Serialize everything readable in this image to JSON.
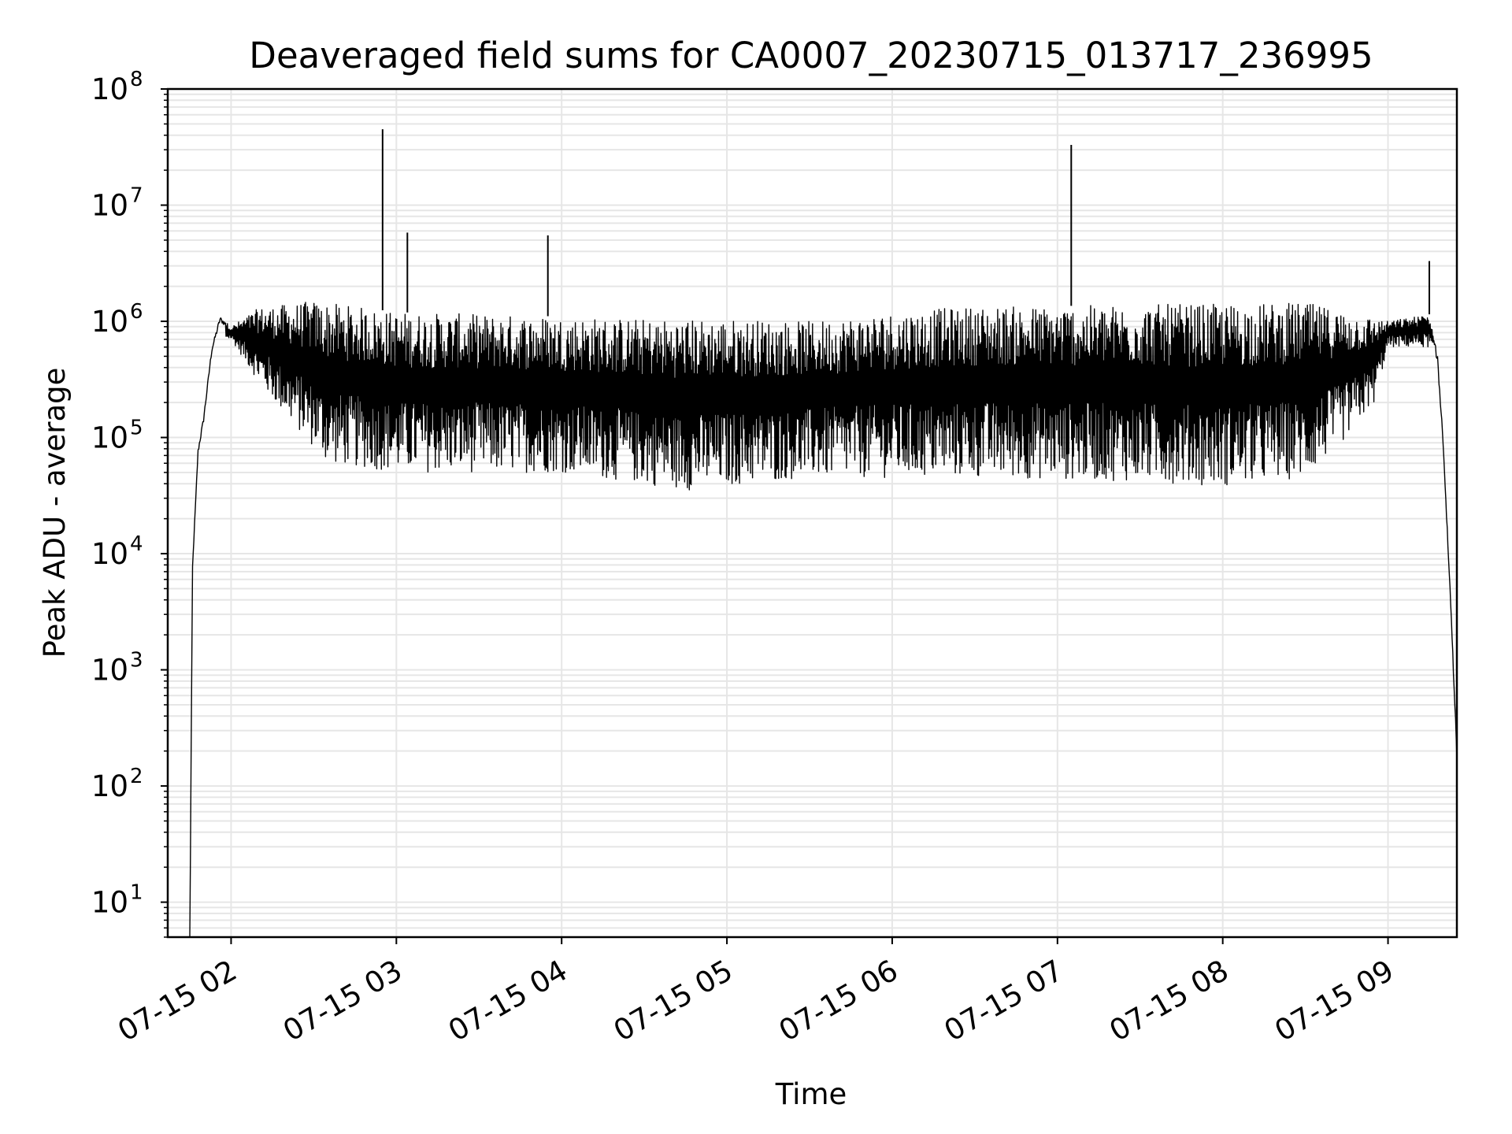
{
  "chart_data": {
    "type": "line",
    "title": "Deaveraged field sums for CA0007_20230715_013717_236995",
    "xlabel": "Time",
    "ylabel": "Peak ADU - average",
    "yscale": "log",
    "ylim": [
      5,
      100000000
    ],
    "xlim": [
      "2023-07-15 01:37",
      "2023-07-15 09:25"
    ],
    "grid": "on (major and minor)",
    "line_color": "#000000",
    "grid_color": "#e6e6e6",
    "x_ticks": [
      {
        "value": "2023-07-15 02:00",
        "label": "07-15 02"
      },
      {
        "value": "2023-07-15 03:00",
        "label": "07-15 03"
      },
      {
        "value": "2023-07-15 04:00",
        "label": "07-15 04"
      },
      {
        "value": "2023-07-15 05:00",
        "label": "07-15 05"
      },
      {
        "value": "2023-07-15 06:00",
        "label": "07-15 06"
      },
      {
        "value": "2023-07-15 07:00",
        "label": "07-15 07"
      },
      {
        "value": "2023-07-15 08:00",
        "label": "07-15 08"
      },
      {
        "value": "2023-07-15 09:00",
        "label": "07-15 09"
      }
    ],
    "y_ticks": [
      {
        "value": 10,
        "base": "10",
        "exp": "1"
      },
      {
        "value": 100,
        "base": "10",
        "exp": "2"
      },
      {
        "value": 1000,
        "base": "10",
        "exp": "3"
      },
      {
        "value": 10000,
        "base": "10",
        "exp": "4"
      },
      {
        "value": 100000,
        "base": "10",
        "exp": "5"
      },
      {
        "value": 1000000,
        "base": "10",
        "exp": "6"
      },
      {
        "value": 10000000,
        "base": "10",
        "exp": "7"
      },
      {
        "value": 100000000,
        "base": "10",
        "exp": "8"
      }
    ],
    "series": [
      {
        "upper_envelope": [
          [
            "2023-07-15 01:45",
            5
          ],
          [
            "2023-07-15 01:46",
            8000
          ],
          [
            "2023-07-15 01:48",
            80000
          ],
          [
            "2023-07-15 01:50",
            150000
          ],
          [
            "2023-07-15 01:53",
            600000
          ],
          [
            "2023-07-15 01:56",
            1100000
          ],
          [
            "2023-07-15 02:00",
            900000
          ],
          [
            "2023-07-15 02:10",
            1300000
          ],
          [
            "2023-07-15 02:30",
            1500000
          ],
          [
            "2023-07-15 03:00",
            1200000
          ],
          [
            "2023-07-15 03:30",
            1150000
          ],
          [
            "2023-07-15 04:00",
            1100000
          ],
          [
            "2023-07-15 04:30",
            1050000
          ],
          [
            "2023-07-15 05:00",
            1050000
          ],
          [
            "2023-07-15 05:30",
            1000000
          ],
          [
            "2023-07-15 06:00",
            1200000
          ],
          [
            "2023-07-15 06:30",
            1350000
          ],
          [
            "2023-07-15 07:00",
            1350000
          ],
          [
            "2023-07-15 07:30",
            1400000
          ],
          [
            "2023-07-15 08:00",
            1400000
          ],
          [
            "2023-07-15 08:30",
            1450000
          ],
          [
            "2023-07-15 09:00",
            1000000
          ],
          [
            "2023-07-15 09:15",
            1150000
          ],
          [
            "2023-07-15 09:18",
            500000
          ],
          [
            "2023-07-15 09:20",
            100000
          ],
          [
            "2023-07-15 09:23",
            3000
          ],
          [
            "2023-07-15 09:25",
            200
          ]
        ],
        "lower_envelope": [
          [
            "2023-07-15 02:00",
            700000
          ],
          [
            "2023-07-15 02:10",
            300000
          ],
          [
            "2023-07-15 02:20",
            150000
          ],
          [
            "2023-07-15 02:35",
            60000
          ],
          [
            "2023-07-15 03:00",
            50000
          ],
          [
            "2023-07-15 04:00",
            50000
          ],
          [
            "2023-07-15 04:45",
            35000
          ],
          [
            "2023-07-15 05:30",
            45000
          ],
          [
            "2023-07-15 06:30",
            45000
          ],
          [
            "2023-07-15 07:30",
            42000
          ],
          [
            "2023-07-15 08:00",
            38000
          ],
          [
            "2023-07-15 08:30",
            45000
          ],
          [
            "2023-07-15 08:45",
            100000
          ],
          [
            "2023-07-15 08:55",
            200000
          ],
          [
            "2023-07-15 09:00",
            600000
          ]
        ],
        "spikes": [
          [
            "2023-07-15 02:55",
            45000000
          ],
          [
            "2023-07-15 03:04",
            5800000
          ],
          [
            "2023-07-15 03:55",
            5500000
          ],
          [
            "2023-07-15 07:05",
            33000000
          ],
          [
            "2023-07-15 09:15",
            3300000
          ]
        ]
      }
    ]
  }
}
